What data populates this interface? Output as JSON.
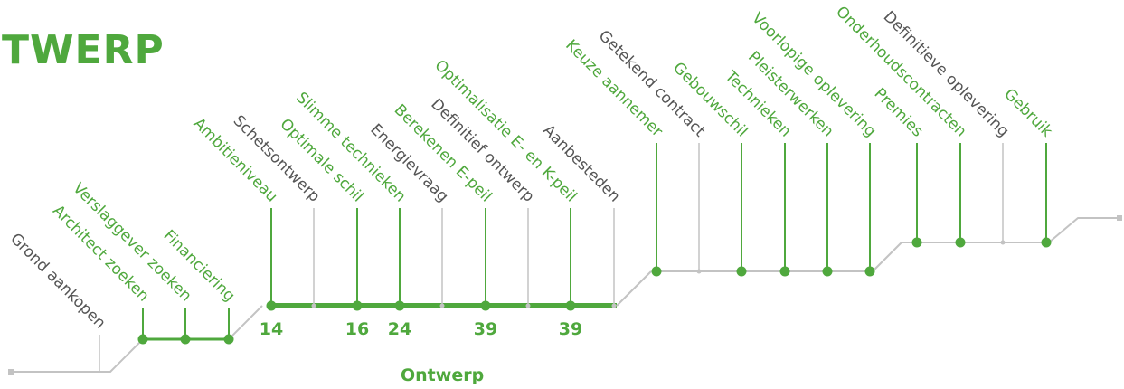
{
  "title": "TWERP",
  "stage_label": "Ontwerp",
  "colors": {
    "green": "#4fa83d",
    "gray": "#c3c3c3",
    "text_gray": "#555555"
  },
  "steps": [
    {
      "label": "Grond aankopen",
      "color": "gray"
    },
    {
      "label": "Architect zoeken",
      "color": "green"
    },
    {
      "label": "Verslaggever zoeken",
      "color": "green"
    },
    {
      "label": "Financiering",
      "color": "green"
    },
    {
      "label": "Ambitieniveau",
      "color": "green",
      "value": "14"
    },
    {
      "label": "Schetsontwerp",
      "color": "gray"
    },
    {
      "label": "Optimale schil",
      "color": "green",
      "value": "16"
    },
    {
      "label": "Slimme technieken",
      "color": "green",
      "value": "24"
    },
    {
      "label": "Energievraag",
      "color": "gray"
    },
    {
      "label": "Berekenen E-peil",
      "color": "green",
      "value": "39"
    },
    {
      "label": "Definitief ontwerp",
      "color": "gray"
    },
    {
      "label": "Optimalisatie E- en K-peil",
      "color": "green",
      "value": "39"
    },
    {
      "label": "Aanbesteden",
      "color": "gray"
    },
    {
      "label": "Keuze aannemer",
      "color": "green"
    },
    {
      "label": "Getekend contract",
      "color": "gray"
    },
    {
      "label": "Gebouwschil",
      "color": "green"
    },
    {
      "label": "Technieken",
      "color": "green"
    },
    {
      "label": "Pleisterwerken",
      "color": "green"
    },
    {
      "label": "Voorlopige oplevering",
      "color": "green"
    },
    {
      "label": "Premies",
      "color": "green"
    },
    {
      "label": "Onderhoudscontracten",
      "color": "green"
    },
    {
      "label": "Definitieve oplevering",
      "color": "gray"
    },
    {
      "label": "Gebruik",
      "color": "green"
    }
  ]
}
